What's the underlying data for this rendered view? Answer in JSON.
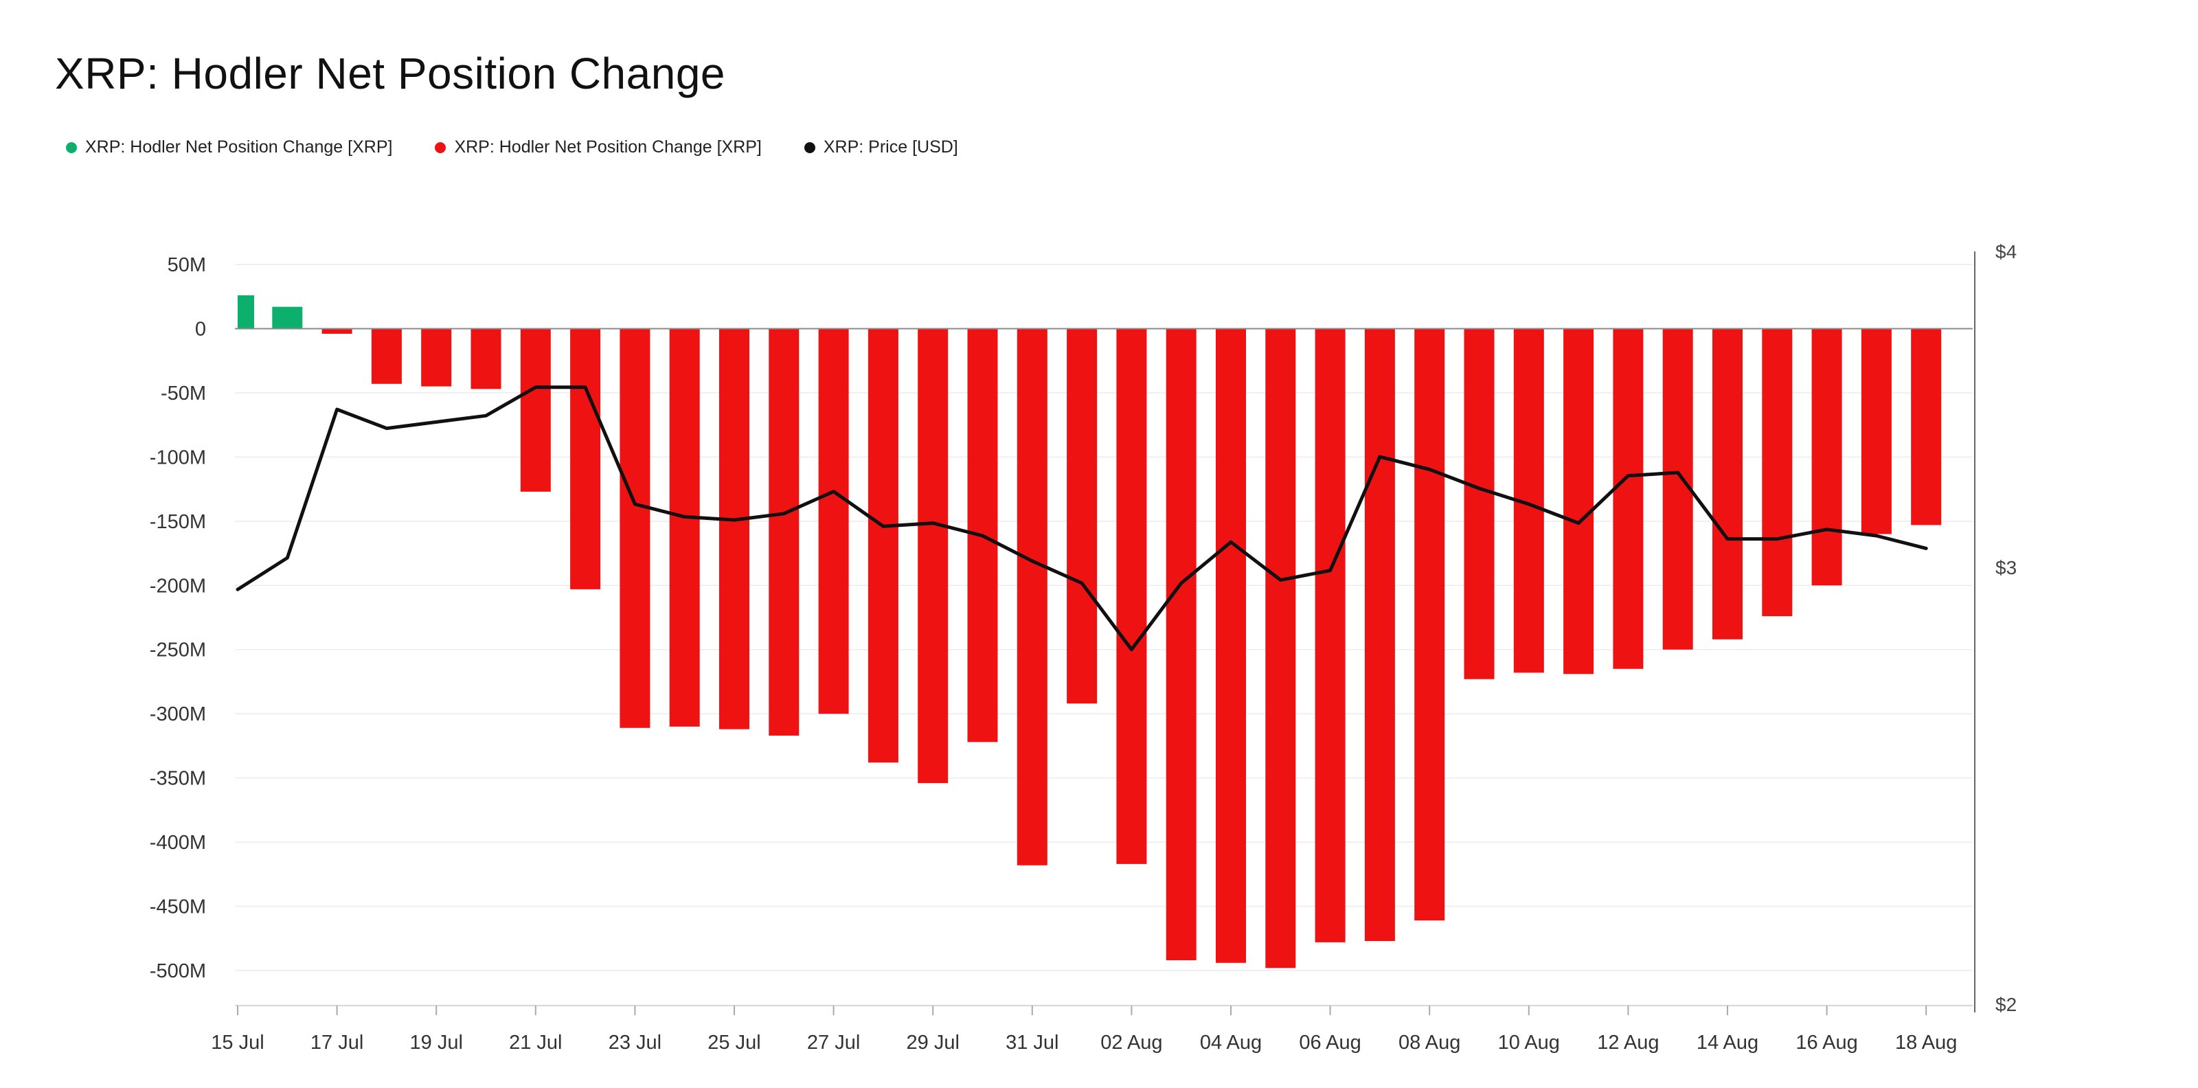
{
  "chart_data": {
    "type": "bar",
    "title": "XRP: Hodler Net Position Change",
    "legend_placement": "top-left",
    "grid": true,
    "x": [
      "15 Jul",
      "16 Jul",
      "17 Jul",
      "18 Jul",
      "19 Jul",
      "20 Jul",
      "21 Jul",
      "22 Jul",
      "23 Jul",
      "24 Jul",
      "25 Jul",
      "26 Jul",
      "27 Jul",
      "28 Jul",
      "29 Jul",
      "30 Jul",
      "31 Jul",
      "01 Aug",
      "02 Aug",
      "03 Aug",
      "04 Aug",
      "05 Aug",
      "06 Aug",
      "07 Aug",
      "08 Aug",
      "09 Aug",
      "10 Aug",
      "11 Aug",
      "12 Aug",
      "13 Aug",
      "14 Aug",
      "15 Aug",
      "16 Aug",
      "17 Aug",
      "18 Aug"
    ],
    "x_tick_labels": [
      "15 Jul",
      "17 Jul",
      "19 Jul",
      "21 Jul",
      "23 Jul",
      "25 Jul",
      "27 Jul",
      "29 Jul",
      "31 Jul",
      "02 Aug",
      "04 Aug",
      "06 Aug",
      "08 Aug",
      "10 Aug",
      "12 Aug",
      "14 Aug",
      "16 Aug",
      "18 Aug"
    ],
    "y_left": {
      "ylim": [
        -530000000,
        50000000
      ],
      "ticks": [
        50000000,
        0,
        -50000000,
        -100000000,
        -150000000,
        -200000000,
        -250000000,
        -300000000,
        -350000000,
        -400000000,
        -450000000,
        -500000000
      ],
      "tick_labels": [
        "50M",
        "0",
        "-50M",
        "-100M",
        "-150M",
        "-200M",
        "-250M",
        "-300M",
        "-350M",
        "-400M",
        "-450M",
        "-500M"
      ]
    },
    "y_right": {
      "ylim": [
        2,
        4
      ],
      "ticks": [
        4,
        3,
        2
      ],
      "tick_labels": [
        "$4",
        "$3",
        "$2"
      ]
    },
    "series": [
      {
        "name": "XRP: Hodler Net Position Change [XRP]",
        "color": "#0cb06c",
        "axis": "left",
        "kind": "bar-positive",
        "values": [
          26000000,
          17000000,
          null,
          null,
          null,
          null,
          null,
          null,
          null,
          null,
          null,
          null,
          null,
          null,
          null,
          null,
          null,
          null,
          null,
          null,
          null,
          null,
          null,
          null,
          null,
          null,
          null,
          null,
          null,
          null,
          null,
          null,
          null,
          null,
          null
        ]
      },
      {
        "name": "XRP: Hodler Net Position Change [XRP]",
        "color": "#ee1212",
        "axis": "left",
        "kind": "bar-negative",
        "values": [
          null,
          null,
          -4000000,
          -43000000,
          -45000000,
          -47000000,
          -127000000,
          -203000000,
          -311000000,
          -310000000,
          -312000000,
          -317000000,
          -300000000,
          -338000000,
          -354000000,
          -322000000,
          -418000000,
          -292000000,
          -417000000,
          -492000000,
          -494000000,
          -498000000,
          -478000000,
          -477000000,
          -461000000,
          -273000000,
          -268000000,
          -269000000,
          -265000000,
          -250000000,
          -242000000,
          -224000000,
          -200000000,
          -160000000,
          -153000000
        ]
      },
      {
        "name": "XRP: Price [USD]",
        "color": "#111111",
        "axis": "right",
        "kind": "line",
        "values": [
          2.93,
          3.03,
          3.5,
          3.44,
          3.46,
          3.48,
          3.57,
          3.57,
          3.2,
          3.16,
          3.15,
          3.17,
          3.24,
          3.13,
          3.14,
          3.1,
          3.02,
          2.95,
          2.74,
          2.95,
          3.08,
          2.96,
          2.99,
          3.35,
          3.31,
          3.25,
          3.2,
          3.14,
          3.29,
          3.3,
          3.09,
          3.09,
          3.12,
          3.1,
          3.06
        ]
      }
    ]
  }
}
